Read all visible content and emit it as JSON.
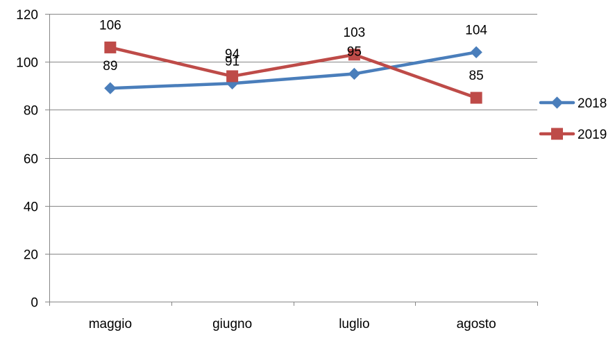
{
  "chart_data": {
    "type": "line",
    "title": "",
    "xlabel": "",
    "ylabel": "",
    "categories": [
      "maggio",
      "giugno",
      "luglio",
      "agosto"
    ],
    "ylim": [
      0,
      120
    ],
    "yticks": [
      0,
      20,
      40,
      60,
      80,
      100,
      120
    ],
    "grid": true,
    "legend_position": "right",
    "series": [
      {
        "name": "2018",
        "values": [
          89,
          91,
          95,
          104
        ],
        "labels": [
          "89",
          "91",
          "95",
          "104"
        ],
        "color": "#4a7ebb",
        "marker": "diamond"
      },
      {
        "name": "2019",
        "values": [
          106,
          94,
          103,
          85
        ],
        "labels": [
          "106",
          "94",
          "103",
          "85"
        ],
        "color": "#be4b48",
        "marker": "square"
      }
    ]
  }
}
